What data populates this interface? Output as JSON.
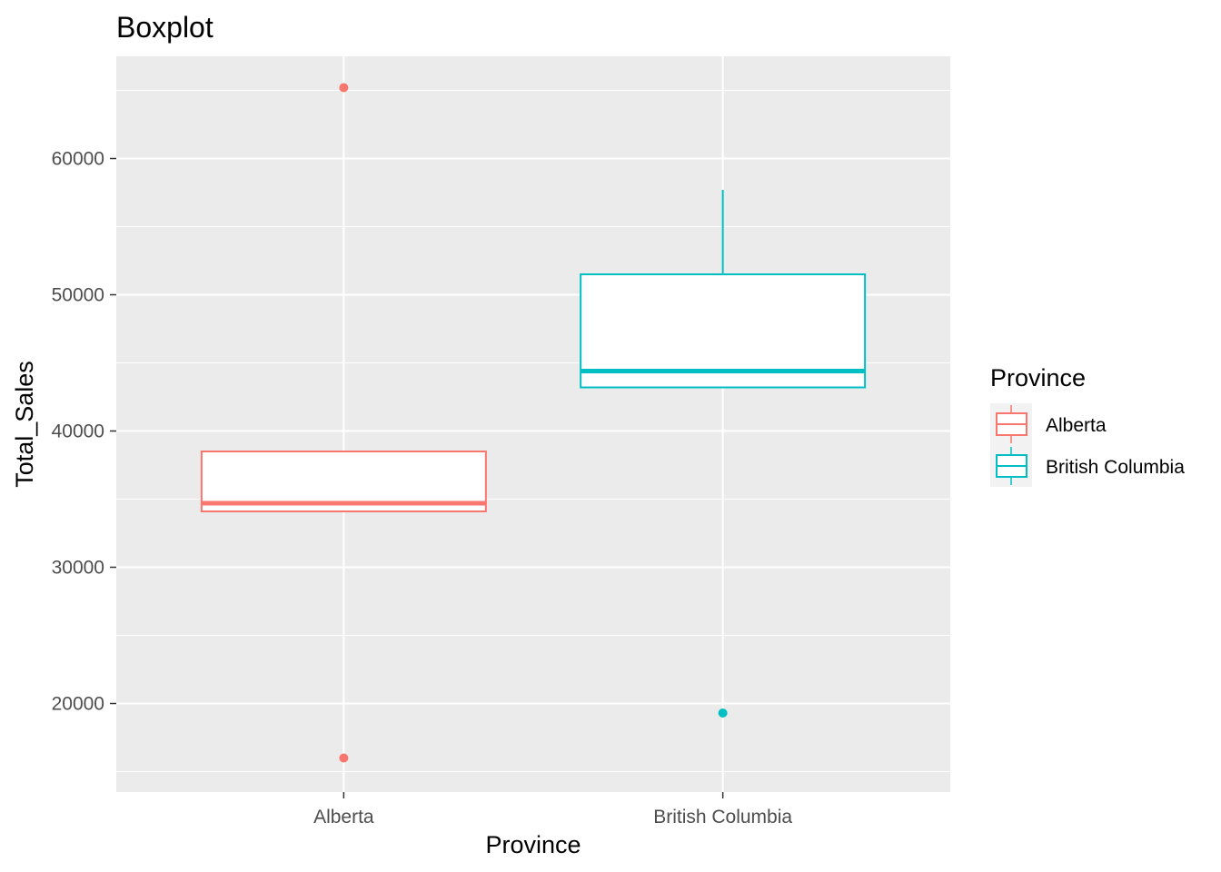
{
  "chart_data": {
    "type": "boxplot",
    "title": "Boxplot",
    "xlabel": "Province",
    "ylabel": "Total_Sales",
    "categories": [
      "Alberta",
      "British Columbia"
    ],
    "ylim": [
      13500,
      67500
    ],
    "y_ticks": [
      20000,
      30000,
      40000,
      50000,
      60000
    ],
    "y_tick_labels": [
      "20000",
      "30000",
      "40000",
      "50000",
      "60000"
    ],
    "grid": true,
    "legend": {
      "title": "Province",
      "position": "right",
      "entries": [
        "Alberta",
        "British Columbia"
      ]
    },
    "series": [
      {
        "name": "Alberta",
        "color": "#F8766D",
        "whisker_low": 34100,
        "q1": 34100,
        "median": 34700,
        "q3": 38500,
        "whisker_high": 38500,
        "outliers": [
          65200,
          16000
        ]
      },
      {
        "name": "British Columbia",
        "color": "#00BFC4",
        "whisker_low": 43200,
        "q1": 43200,
        "median": 44400,
        "q3": 51500,
        "whisker_high": 57700,
        "outliers": [
          19300
        ]
      }
    ]
  }
}
